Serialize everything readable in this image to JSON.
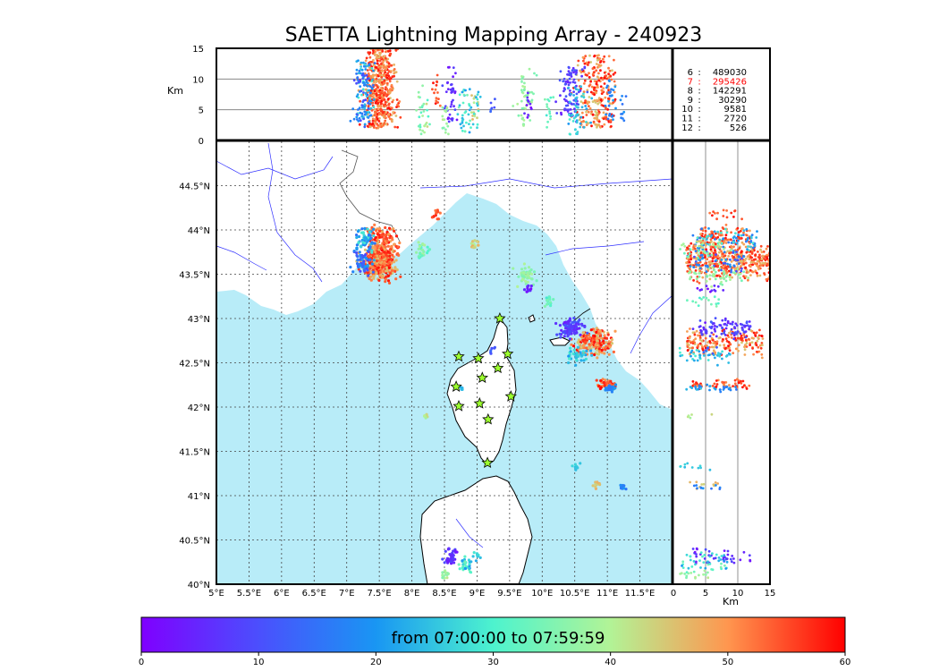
{
  "chart_data": {
    "type": "scatter",
    "title": "SAETTA Lightning Mapping Array - 240923",
    "colorbar": {
      "label": "from 07:00:00 to 07:59:59",
      "ticks": [
        "0",
        "10",
        "20",
        "30",
        "40",
        "50",
        "60"
      ],
      "range": [
        0,
        60
      ],
      "colormap": "rainbow"
    },
    "map": {
      "lon_range": [
        5,
        12
      ],
      "lat_range": [
        40,
        45
      ],
      "lon_ticks": [
        "5°E",
        "5.5°E",
        "6°E",
        "6.5°E",
        "7°E",
        "7.5°E",
        "8°E",
        "8.5°E",
        "9°E",
        "9.5°E",
        "10°E",
        "10.5°E",
        "11°E",
        "11.5°E"
      ],
      "lat_ticks": [
        "40°N",
        "40.5°N",
        "41°N",
        "41.5°N",
        "42°N",
        "42.5°N",
        "43°N",
        "43.5°N",
        "44°N",
        "44.5°N"
      ],
      "sea_color": "#b8ecf8",
      "grid": true
    },
    "altitude_panel": {
      "ylabel": "Km",
      "ylim": [
        0,
        15
      ],
      "ticks": [
        "0",
        "5",
        "10",
        "15"
      ]
    },
    "side_panel": {
      "xlabel": "Km",
      "xlim": [
        0,
        15
      ],
      "ticks": [
        "0",
        "5",
        "10",
        "15"
      ]
    },
    "legend_counts": [
      {
        "label": "6",
        "value": "489030",
        "color": "#000000"
      },
      {
        "label": "7",
        "value": "295426",
        "color": "#ff0000"
      },
      {
        "label": "8",
        "value": "142291",
        "color": "#000000"
      },
      {
        "label": "9",
        "value": "30290",
        "color": "#000000"
      },
      {
        "label": "10",
        "value": "9581",
        "color": "#000000"
      },
      {
        "label": "11",
        "value": "2720",
        "color": "#000000"
      },
      {
        "label": "12",
        "value": "526",
        "color": "#000000"
      }
    ],
    "stations": [
      {
        "lon": 9.35,
        "lat": 43.0
      },
      {
        "lon": 8.72,
        "lat": 42.57
      },
      {
        "lon": 9.02,
        "lat": 42.55
      },
      {
        "lon": 9.47,
        "lat": 42.6
      },
      {
        "lon": 9.32,
        "lat": 42.44
      },
      {
        "lon": 9.08,
        "lat": 42.33
      },
      {
        "lon": 8.68,
        "lat": 42.23
      },
      {
        "lon": 9.52,
        "lat": 42.12
      },
      {
        "lon": 8.72,
        "lat": 42.01
      },
      {
        "lon": 9.04,
        "lat": 42.04
      },
      {
        "lon": 9.17,
        "lat": 41.86
      },
      {
        "lon": 9.16,
        "lat": 41.37
      }
    ],
    "clusters": [
      {
        "lon": 7.5,
        "lat": 43.65,
        "slon": 0.12,
        "slat": 0.1,
        "tmin": 45,
        "tmax": 60,
        "n": 420,
        "zmin": 2,
        "zmax": 15
      },
      {
        "lon": 7.55,
        "lat": 43.92,
        "slon": 0.12,
        "slat": 0.06,
        "tmin": 48,
        "tmax": 60,
        "n": 90,
        "zmin": 4,
        "zmax": 12
      },
      {
        "lon": 7.28,
        "lat": 43.9,
        "slon": 0.07,
        "slat": 0.06,
        "tmin": 15,
        "tmax": 30,
        "n": 70,
        "zmin": 3,
        "zmax": 13
      },
      {
        "lon": 7.25,
        "lat": 43.65,
        "slon": 0.07,
        "slat": 0.08,
        "tmin": 8,
        "tmax": 22,
        "n": 60,
        "zmin": 2,
        "zmax": 11
      },
      {
        "lon": 8.38,
        "lat": 44.17,
        "slon": 0.03,
        "slat": 0.03,
        "tmin": 52,
        "tmax": 60,
        "n": 15,
        "zmin": 5,
        "zmax": 11
      },
      {
        "lon": 8.17,
        "lat": 43.78,
        "slon": 0.05,
        "slat": 0.04,
        "tmin": 30,
        "tmax": 40,
        "n": 25,
        "zmin": 1,
        "zmax": 9
      },
      {
        "lon": 8.97,
        "lat": 43.84,
        "slon": 0.03,
        "slat": 0.03,
        "tmin": 40,
        "tmax": 48,
        "n": 15,
        "zmin": 3,
        "zmax": 8
      },
      {
        "lon": 9.75,
        "lat": 43.48,
        "slon": 0.08,
        "slat": 0.05,
        "tmin": 34,
        "tmax": 40,
        "n": 50,
        "zmin": 2,
        "zmax": 12
      },
      {
        "lon": 9.78,
        "lat": 43.33,
        "slon": 0.03,
        "slat": 0.03,
        "tmin": 1,
        "tmax": 6,
        "n": 12,
        "zmin": 3,
        "zmax": 9
      },
      {
        "lon": 10.1,
        "lat": 43.18,
        "slon": 0.04,
        "slat": 0.03,
        "tmin": 28,
        "tmax": 36,
        "n": 15,
        "zmin": 2,
        "zmax": 8
      },
      {
        "lon": 10.8,
        "lat": 42.73,
        "slon": 0.14,
        "slat": 0.08,
        "tmin": 44,
        "tmax": 60,
        "n": 190,
        "zmin": 2,
        "zmax": 14
      },
      {
        "lon": 10.45,
        "lat": 42.9,
        "slon": 0.1,
        "slat": 0.06,
        "tmin": 3,
        "tmax": 12,
        "n": 90,
        "zmin": 3,
        "zmax": 12
      },
      {
        "lon": 10.55,
        "lat": 42.58,
        "slon": 0.08,
        "slat": 0.04,
        "tmin": 20,
        "tmax": 30,
        "n": 40,
        "zmin": 1,
        "zmax": 9
      },
      {
        "lon": 11.0,
        "lat": 42.26,
        "slon": 0.08,
        "slat": 0.03,
        "tmin": 50,
        "tmax": 60,
        "n": 50,
        "zmin": 3,
        "zmax": 12
      },
      {
        "lon": 11.05,
        "lat": 42.21,
        "slon": 0.05,
        "slat": 0.02,
        "tmin": 15,
        "tmax": 22,
        "n": 25,
        "zmin": 3,
        "zmax": 10
      },
      {
        "lon": 10.52,
        "lat": 41.32,
        "slon": 0.03,
        "slat": 0.02,
        "tmin": 24,
        "tmax": 28,
        "n": 10,
        "zmin": 1,
        "zmax": 6
      },
      {
        "lon": 10.85,
        "lat": 41.12,
        "slon": 0.03,
        "slat": 0.02,
        "tmin": 42,
        "tmax": 48,
        "n": 10,
        "zmin": 2,
        "zmax": 7
      },
      {
        "lon": 11.25,
        "lat": 41.09,
        "slon": 0.03,
        "slat": 0.02,
        "tmin": 15,
        "tmax": 20,
        "n": 10,
        "zmin": 2,
        "zmax": 8
      },
      {
        "lon": 8.6,
        "lat": 40.3,
        "slon": 0.05,
        "slat": 0.05,
        "tmin": 2,
        "tmax": 10,
        "n": 40,
        "zmin": 3,
        "zmax": 12
      },
      {
        "lon": 8.82,
        "lat": 40.22,
        "slon": 0.05,
        "slat": 0.04,
        "tmin": 20,
        "tmax": 35,
        "n": 30,
        "zmin": 1,
        "zmax": 9
      },
      {
        "lon": 8.5,
        "lat": 40.1,
        "slon": 0.04,
        "slat": 0.03,
        "tmin": 35,
        "tmax": 42,
        "n": 15,
        "zmin": 1,
        "zmax": 6
      },
      {
        "lon": 9.0,
        "lat": 40.32,
        "slon": 0.03,
        "slat": 0.03,
        "tmin": 22,
        "tmax": 30,
        "n": 12,
        "zmin": 2,
        "zmax": 8
      },
      {
        "lon": 9.22,
        "lat": 42.65,
        "slon": 0.02,
        "slat": 0.02,
        "tmin": 10,
        "tmax": 14,
        "n": 6,
        "zmin": 3,
        "zmax": 7
      },
      {
        "lon": 8.75,
        "lat": 42.22,
        "slon": 0.02,
        "slat": 0.02,
        "tmin": 22,
        "tmax": 26,
        "n": 6,
        "zmin": 2,
        "zmax": 6
      },
      {
        "lon": 8.22,
        "lat": 41.88,
        "slon": 0.02,
        "slat": 0.02,
        "tmin": 38,
        "tmax": 44,
        "n": 6,
        "zmin": 2,
        "zmax": 6
      }
    ]
  }
}
